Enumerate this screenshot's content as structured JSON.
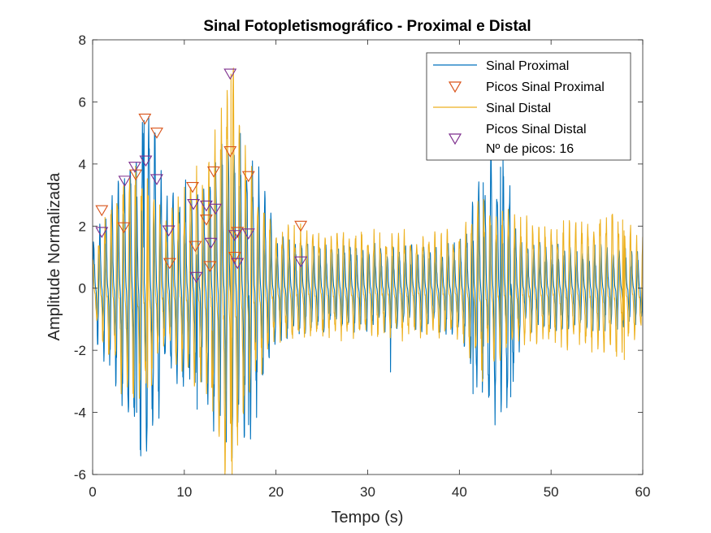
{
  "chart_data": {
    "type": "line",
    "title": "Sinal Fotopletismográfico - Proximal e Distal",
    "xlabel": "Tempo (s)",
    "ylabel": "Amplitude Normalizada",
    "xlim": [
      0,
      60
    ],
    "ylim": [
      -6,
      8
    ],
    "xticks": [
      0,
      10,
      20,
      30,
      40,
      50,
      60
    ],
    "yticks": [
      -6,
      -4,
      -2,
      0,
      2,
      4,
      6,
      8
    ],
    "grid": false,
    "legend_position": "top-right",
    "colors": {
      "proximal": "#0072BD",
      "distal": "#EDB120",
      "peaks_proximal": "#D95319",
      "peaks_distal": "#7E2F8E"
    },
    "legend": [
      {
        "label": "Sinal Proximal",
        "marker": "line",
        "color": "#0072BD"
      },
      {
        "label": "Picos Sinal Proximal",
        "marker": "triangle-down",
        "color": "#D95319"
      },
      {
        "label": "Sinal Distal",
        "marker": "line",
        "color": "#EDB120"
      },
      {
        "label": "Picos Sinal Distal",
        "marker": "triangle-down",
        "color": "#7E2F8E"
      },
      {
        "label": "Nº de picos: 16",
        "marker": "none",
        "color": "#000000"
      }
    ],
    "series": [
      {
        "name": "Sinal Proximal",
        "kind": "signal",
        "approx_frequency_hz": 1.5,
        "envelope": [
          [
            0,
            1.2
          ],
          [
            5,
            4.5
          ],
          [
            6,
            5.5
          ],
          [
            8,
            2.5
          ],
          [
            10,
            3.0
          ],
          [
            12,
            2.5
          ],
          [
            13,
            3.8
          ],
          [
            15,
            4.5
          ],
          [
            17,
            4.2
          ],
          [
            20,
            1.5
          ],
          [
            25,
            1.2
          ],
          [
            30,
            1.2
          ],
          [
            35,
            1.2
          ],
          [
            40,
            1.2
          ],
          [
            43,
            3.7
          ],
          [
            45,
            3.8
          ],
          [
            47,
            1.2
          ],
          [
            55,
            1.2
          ],
          [
            60,
            1.0
          ]
        ],
        "notable_extremes": [
          {
            "x": 5.6,
            "y": 5.4
          },
          {
            "x": 6.8,
            "y": 5.0
          },
          {
            "x": 4.8,
            "y": -4.0
          },
          {
            "x": 11.4,
            "y": -3.9
          },
          {
            "x": 17.0,
            "y": -4.4
          },
          {
            "x": 15.1,
            "y": -4.0
          },
          {
            "x": 32.5,
            "y": -2.7
          },
          {
            "x": 41.5,
            "y": -3.4
          },
          {
            "x": 42.6,
            "y": 3.4
          },
          {
            "x": 44.5,
            "y": 3.9
          },
          {
            "x": 45.5,
            "y": 3.3
          },
          {
            "x": 45.6,
            "y": -3.5
          }
        ]
      },
      {
        "name": "Picos Sinal Proximal",
        "kind": "peaks",
        "points": [
          {
            "x": 1.0,
            "y": 2.5
          },
          {
            "x": 3.4,
            "y": 1.95
          },
          {
            "x": 4.7,
            "y": 3.65
          },
          {
            "x": 5.7,
            "y": 5.45
          },
          {
            "x": 7.0,
            "y": 5.0
          },
          {
            "x": 8.4,
            "y": 0.8
          },
          {
            "x": 10.9,
            "y": 3.25
          },
          {
            "x": 11.2,
            "y": 1.35
          },
          {
            "x": 12.4,
            "y": 2.2
          },
          {
            "x": 12.8,
            "y": 0.7
          },
          {
            "x": 13.2,
            "y": 3.75
          },
          {
            "x": 15.0,
            "y": 4.4
          },
          {
            "x": 15.5,
            "y": 1.0
          },
          {
            "x": 15.8,
            "y": 1.8
          },
          {
            "x": 17.0,
            "y": 3.6
          },
          {
            "x": 22.7,
            "y": 2.0
          }
        ]
      },
      {
        "name": "Sinal Distal",
        "kind": "signal",
        "approx_frequency_hz": 1.5,
        "envelope": [
          [
            0,
            1.0
          ],
          [
            4,
            3.5
          ],
          [
            6,
            3.2
          ],
          [
            8,
            1.8
          ],
          [
            11,
            3.0
          ],
          [
            13,
            3.2
          ],
          [
            14.8,
            6.9
          ],
          [
            15.2,
            6.0
          ],
          [
            17,
            3.2
          ],
          [
            20,
            1.6
          ],
          [
            25,
            1.6
          ],
          [
            30,
            1.5
          ],
          [
            40,
            1.5
          ],
          [
            42,
            2.5
          ],
          [
            45,
            2.0
          ],
          [
            50,
            1.6
          ],
          [
            57,
            2.2
          ],
          [
            60,
            1.3
          ]
        ],
        "notable_extremes": [
          {
            "x": 15.1,
            "y": 6.9
          },
          {
            "x": 15.2,
            "y": -6.0
          },
          {
            "x": 6.0,
            "y": -3.2
          },
          {
            "x": 13.0,
            "y": -3.2
          },
          {
            "x": 42.5,
            "y": -3.0
          },
          {
            "x": 42.0,
            "y": 2.6
          },
          {
            "x": 57.8,
            "y": 2.2
          },
          {
            "x": 58.0,
            "y": -2.3
          }
        ]
      },
      {
        "name": "Picos Sinal Distal",
        "kind": "peaks",
        "points": [
          {
            "x": 1.0,
            "y": 1.8
          },
          {
            "x": 3.5,
            "y": 3.45
          },
          {
            "x": 4.6,
            "y": 3.9
          },
          {
            "x": 5.8,
            "y": 4.1
          },
          {
            "x": 7.0,
            "y": 3.5
          },
          {
            "x": 8.3,
            "y": 1.85
          },
          {
            "x": 11.0,
            "y": 2.7
          },
          {
            "x": 11.3,
            "y": 0.35
          },
          {
            "x": 12.4,
            "y": 2.65
          },
          {
            "x": 12.9,
            "y": 1.45
          },
          {
            "x": 13.4,
            "y": 2.55
          },
          {
            "x": 15.0,
            "y": 6.9
          },
          {
            "x": 15.5,
            "y": 1.7
          },
          {
            "x": 15.8,
            "y": 0.8
          },
          {
            "x": 17.0,
            "y": 1.75
          },
          {
            "x": 22.7,
            "y": 0.85
          }
        ]
      }
    ]
  }
}
